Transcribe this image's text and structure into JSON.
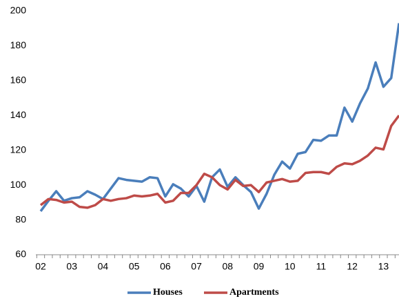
{
  "chart_data": {
    "type": "line",
    "categories": [
      "02",
      null,
      null,
      null,
      "03",
      null,
      null,
      null,
      "04",
      null,
      null,
      null,
      "05",
      null,
      null,
      null,
      "06",
      null,
      null,
      null,
      "07",
      null,
      null,
      null,
      "08",
      null,
      null,
      null,
      "09",
      null,
      null,
      null,
      "10",
      null,
      null,
      null,
      "11",
      null,
      null,
      null,
      "12",
      null,
      null,
      null,
      "13",
      null,
      null
    ],
    "series": [
      {
        "name": "Houses",
        "color": "#4a7ebb",
        "values": [
          85,
          91,
          96.5,
          91,
          92.5,
          93,
          96.5,
          94.5,
          92,
          98,
          104,
          103,
          102.5,
          102,
          104.5,
          104,
          93.5,
          100.5,
          98,
          93.5,
          99.5,
          90.5,
          104.5,
          109,
          99,
          104.5,
          100,
          96,
          86.5,
          95,
          106,
          113.5,
          109.5,
          118,
          119,
          126,
          125.5,
          128.5,
          128.5,
          144.5,
          136.5,
          147,
          155.5,
          170.5,
          156.5,
          161.5,
          193
        ]
      },
      {
        "name": "Apartments",
        "color": "#be4b48",
        "values": [
          88.5,
          92,
          91.5,
          90,
          90.5,
          87.5,
          87,
          88.5,
          92,
          91,
          92,
          92.5,
          94,
          93.5,
          94,
          95,
          90,
          91,
          95.5,
          95.5,
          100,
          106.5,
          104.5,
          100,
          97.5,
          103,
          99.5,
          100,
          96,
          101.5,
          102.5,
          103.5,
          102,
          102.5,
          107,
          107.5,
          107.5,
          106.5,
          110.5,
          112.5,
          112,
          114,
          117,
          121.5,
          120.5,
          134,
          140
        ]
      }
    ],
    "ylim": [
      60,
      200
    ],
    "yticks": [
      60,
      80,
      100,
      120,
      140,
      160,
      180,
      200
    ],
    "grid": false,
    "legend": "bottom"
  }
}
